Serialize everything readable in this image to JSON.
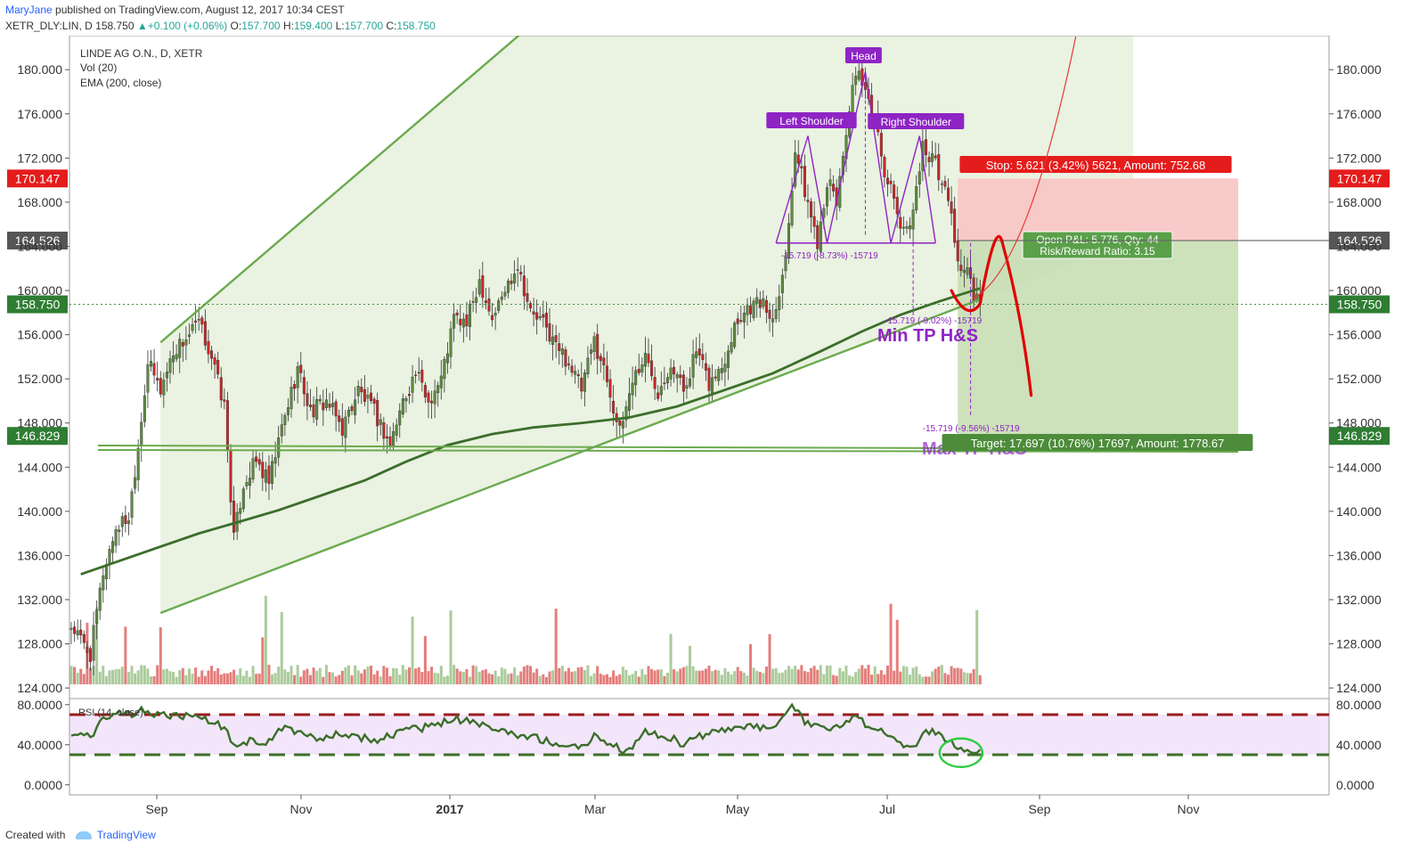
{
  "header": {
    "user": "MaryJane",
    "published": "published on TradingView.com, August 12, 2017 10:34 CEST",
    "symbol": "XETR_DLY:LIN, D",
    "last": "158.750",
    "change": "+0.100 (+0.06%)",
    "o_label": "O:",
    "o": "157.700",
    "h_label": "H:",
    "h": "159.400",
    "l_label": "L:",
    "l": "157.700",
    "c_label": "C:",
    "c": "158.750"
  },
  "legend": {
    "name": "LINDE AG O.N., D, XETR",
    "vol": "Vol (20)",
    "ema": "EMA (200, close)",
    "rsi": "RSI (14, close)"
  },
  "labels": {
    "left_shoulder": "Left Shoulder",
    "head": "Head",
    "right_shoulder": "Right Shoulder",
    "min_tp": "Min TP H&S",
    "max_tp": "Max TP H&S",
    "measure_1": "-15.719 (-8.73%) -15719",
    "measure_2": "-15.719 (-9.02%) -15719",
    "measure_3": "-15.719 (-9.56%) -15719",
    "stop": "Stop: 5.621 (3.42%) 5621, Amount: 752.68",
    "target": "Target: 17.697 (10.76%) 17697, Amount: 1778.67",
    "pnl_1": "Open P&L: 5.776, Qty: 44",
    "pnl_2": "Risk/Reward Ratio: 3.15"
  },
  "price_tags": [
    {
      "text": "170.147",
      "value": 170.147,
      "color": "#e51c1c"
    },
    {
      "text": "164.526",
      "value": 164.526,
      "color": "#555555"
    },
    {
      "text": "158.750",
      "value": 158.75,
      "color": "#2e7d32"
    },
    {
      "text": "146.829",
      "value": 146.829,
      "color": "#2e7d32"
    }
  ],
  "footer": {
    "created": "Created with",
    "brand": "TradingView"
  },
  "colors": {
    "up": "#5c8c3f",
    "down": "#c62828",
    "ema": "#3b6e2a",
    "channel": "#6aaa4e",
    "pattern": "#8e24c4",
    "stop_zone": "#f8c4c4",
    "target_zone": "#c8deb4",
    "rsi_band": "#f3e6fb",
    "price_line": "#3f8f3f"
  },
  "chart_data": {
    "type": "candlestick",
    "symbol": "LINDE AG O.N., D, XETR",
    "x_tick_labels": [
      "Sep",
      "Nov",
      "2017",
      "Mar",
      "May",
      "Jul",
      "Sep",
      "Nov"
    ],
    "y_tick_labels": [
      "180.000",
      "176.000",
      "172.000",
      "168.000",
      "164.000",
      "160.000",
      "156.000",
      "152.000",
      "148.000",
      "144.000",
      "140.000",
      "136.000",
      "132.000",
      "128.000",
      "124.000"
    ],
    "ylim": [
      123.2,
      182.6
    ],
    "rsi_tick_labels": [
      "80.0000",
      "40.0000",
      "0.0000"
    ],
    "rsi_ylim": [
      -10,
      86
    ],
    "rsi_levels": [
      70,
      30
    ],
    "price_key": [
      {
        "x": 0,
        "y": 129.6
      },
      {
        "x": 6,
        "y": 127.0
      },
      {
        "x": 10,
        "y": 134.5
      },
      {
        "x": 14,
        "y": 138.5
      },
      {
        "x": 18,
        "y": 139.5
      },
      {
        "x": 21,
        "y": 146.0
      },
      {
        "x": 24,
        "y": 153.5
      },
      {
        "x": 28,
        "y": 151.0
      },
      {
        "x": 32,
        "y": 154.5
      },
      {
        "x": 37,
        "y": 156.0
      },
      {
        "x": 40,
        "y": 157.0
      },
      {
        "x": 44,
        "y": 154.0
      },
      {
        "x": 48,
        "y": 149.5
      },
      {
        "x": 51,
        "y": 137.5
      },
      {
        "x": 54,
        "y": 142.5
      },
      {
        "x": 58,
        "y": 144.5
      },
      {
        "x": 62,
        "y": 142.5
      },
      {
        "x": 66,
        "y": 147.5
      },
      {
        "x": 71,
        "y": 153.0
      },
      {
        "x": 75,
        "y": 149.0
      },
      {
        "x": 80,
        "y": 150.0
      },
      {
        "x": 85,
        "y": 147.5
      },
      {
        "x": 90,
        "y": 151.0
      },
      {
        "x": 95,
        "y": 149.0
      },
      {
        "x": 100,
        "y": 146.0
      },
      {
        "x": 104,
        "y": 150.0
      },
      {
        "x": 108,
        "y": 152.5
      },
      {
        "x": 112,
        "y": 150.0
      },
      {
        "x": 116,
        "y": 152.0
      },
      {
        "x": 120,
        "y": 157.5
      },
      {
        "x": 124,
        "y": 157.0
      },
      {
        "x": 128,
        "y": 161.0
      },
      {
        "x": 132,
        "y": 157.5
      },
      {
        "x": 136,
        "y": 160.0
      },
      {
        "x": 140,
        "y": 162.5
      },
      {
        "x": 144,
        "y": 158.0
      },
      {
        "x": 148,
        "y": 157.0
      },
      {
        "x": 152,
        "y": 155.0
      },
      {
        "x": 156,
        "y": 153.5
      },
      {
        "x": 160,
        "y": 151.0
      },
      {
        "x": 164,
        "y": 155.5
      },
      {
        "x": 168,
        "y": 152.0
      },
      {
        "x": 172,
        "y": 147.0
      },
      {
        "x": 176,
        "y": 152.0
      },
      {
        "x": 180,
        "y": 154.0
      },
      {
        "x": 184,
        "y": 151.0
      },
      {
        "x": 188,
        "y": 153.5
      },
      {
        "x": 192,
        "y": 151.0
      },
      {
        "x": 196,
        "y": 154.5
      },
      {
        "x": 200,
        "y": 151.5
      },
      {
        "x": 204,
        "y": 153.0
      },
      {
        "x": 208,
        "y": 157.0
      },
      {
        "x": 212,
        "y": 158.5
      },
      {
        "x": 216,
        "y": 159.0
      },
      {
        "x": 220,
        "y": 157.5
      },
      {
        "x": 224,
        "y": 163.0
      },
      {
        "x": 227,
        "y": 173.0
      },
      {
        "x": 230,
        "y": 169.0
      },
      {
        "x": 234,
        "y": 164.5
      },
      {
        "x": 237,
        "y": 170.0
      },
      {
        "x": 240,
        "y": 168.0
      },
      {
        "x": 243,
        "y": 174.5
      },
      {
        "x": 245,
        "y": 178.0
      },
      {
        "x": 247,
        "y": 179.5
      },
      {
        "x": 249,
        "y": 177.5
      },
      {
        "x": 252,
        "y": 175.5
      },
      {
        "x": 255,
        "y": 171.0
      },
      {
        "x": 258,
        "y": 168.0
      },
      {
        "x": 261,
        "y": 165.0
      },
      {
        "x": 264,
        "y": 167.5
      },
      {
        "x": 267,
        "y": 173.0
      },
      {
        "x": 270,
        "y": 172.0
      },
      {
        "x": 273,
        "y": 170.0
      },
      {
        "x": 276,
        "y": 167.0
      },
      {
        "x": 278,
        "y": 162.5
      },
      {
        "x": 281,
        "y": 161.5
      },
      {
        "x": 283,
        "y": 159.5
      },
      {
        "x": 285,
        "y": 158.75
      }
    ],
    "ema_key": [
      {
        "x": 3,
        "y": 134.3
      },
      {
        "x": 15,
        "y": 135.5
      },
      {
        "x": 28,
        "y": 136.8
      },
      {
        "x": 40,
        "y": 138.0
      },
      {
        "x": 52,
        "y": 139.0
      },
      {
        "x": 65,
        "y": 140.1
      },
      {
        "x": 78,
        "y": 141.4
      },
      {
        "x": 92,
        "y": 142.8
      },
      {
        "x": 105,
        "y": 144.5
      },
      {
        "x": 118,
        "y": 146.0
      },
      {
        "x": 132,
        "y": 147.0
      },
      {
        "x": 145,
        "y": 147.6
      },
      {
        "x": 160,
        "y": 148.0
      },
      {
        "x": 175,
        "y": 148.5
      },
      {
        "x": 190,
        "y": 149.5
      },
      {
        "x": 205,
        "y": 151.0
      },
      {
        "x": 220,
        "y": 152.5
      },
      {
        "x": 235,
        "y": 154.5
      },
      {
        "x": 248,
        "y": 156.3
      },
      {
        "x": 260,
        "y": 157.8
      },
      {
        "x": 272,
        "y": 159.0
      },
      {
        "x": 285,
        "y": 160.2
      }
    ],
    "rsi_key": [
      {
        "x": 0,
        "y": 50
      },
      {
        "x": 6,
        "y": 48
      },
      {
        "x": 10,
        "y": 68
      },
      {
        "x": 14,
        "y": 72
      },
      {
        "x": 18,
        "y": 70
      },
      {
        "x": 22,
        "y": 74
      },
      {
        "x": 26,
        "y": 71
      },
      {
        "x": 32,
        "y": 68
      },
      {
        "x": 38,
        "y": 70
      },
      {
        "x": 44,
        "y": 64
      },
      {
        "x": 48,
        "y": 56
      },
      {
        "x": 51,
        "y": 38
      },
      {
        "x": 56,
        "y": 44
      },
      {
        "x": 62,
        "y": 42
      },
      {
        "x": 66,
        "y": 56
      },
      {
        "x": 72,
        "y": 52
      },
      {
        "x": 78,
        "y": 46
      },
      {
        "x": 84,
        "y": 52
      },
      {
        "x": 90,
        "y": 48
      },
      {
        "x": 96,
        "y": 44
      },
      {
        "x": 102,
        "y": 52
      },
      {
        "x": 108,
        "y": 56
      },
      {
        "x": 114,
        "y": 58
      },
      {
        "x": 120,
        "y": 66
      },
      {
        "x": 126,
        "y": 62
      },
      {
        "x": 132,
        "y": 56
      },
      {
        "x": 138,
        "y": 50
      },
      {
        "x": 144,
        "y": 48
      },
      {
        "x": 150,
        "y": 44
      },
      {
        "x": 156,
        "y": 38
      },
      {
        "x": 160,
        "y": 36
      },
      {
        "x": 164,
        "y": 48
      },
      {
        "x": 170,
        "y": 40
      },
      {
        "x": 174,
        "y": 32
      },
      {
        "x": 180,
        "y": 52
      },
      {
        "x": 186,
        "y": 50
      },
      {
        "x": 192,
        "y": 40
      },
      {
        "x": 198,
        "y": 50
      },
      {
        "x": 204,
        "y": 54
      },
      {
        "x": 210,
        "y": 58
      },
      {
        "x": 216,
        "y": 56
      },
      {
        "x": 222,
        "y": 62
      },
      {
        "x": 226,
        "y": 80
      },
      {
        "x": 230,
        "y": 64
      },
      {
        "x": 236,
        "y": 56
      },
      {
        "x": 242,
        "y": 62
      },
      {
        "x": 246,
        "y": 66
      },
      {
        "x": 250,
        "y": 60
      },
      {
        "x": 256,
        "y": 50
      },
      {
        "x": 260,
        "y": 40
      },
      {
        "x": 264,
        "y": 38
      },
      {
        "x": 268,
        "y": 54
      },
      {
        "x": 272,
        "y": 50
      },
      {
        "x": 276,
        "y": 42
      },
      {
        "x": 280,
        "y": 33
      },
      {
        "x": 285,
        "y": 32
      }
    ],
    "annotations": {
      "channel_upper": [
        [
          28,
          155.3
        ],
        [
          245,
          209.0
        ]
      ],
      "channel_lower": [
        [
          28,
          130.8
        ],
        [
          285,
          159.2
        ]
      ],
      "support_line": [
        [
          22,
          145.8
        ],
        [
          285,
          145.8
        ]
      ],
      "neckline": [
        [
          221,
          164.3
        ],
        [
          268,
          164.3
        ]
      ],
      "left_shoulder_top": [
        231,
        174.0
      ],
      "head_top": [
        249,
        179.8
      ],
      "right_shoulder_top": [
        266,
        174.0
      ],
      "projection": [
        [
          276,
          160.0
        ],
        [
          281,
          158.6
        ],
        [
          285,
          158.8
        ],
        [
          290,
          164.3
        ],
        [
          301,
          150.5
        ]
      ],
      "entry": 164.526,
      "stop": 170.147,
      "target": 146.829,
      "last": 158.75,
      "min_tp": 148.7,
      "max_tp": 145.2
    }
  }
}
